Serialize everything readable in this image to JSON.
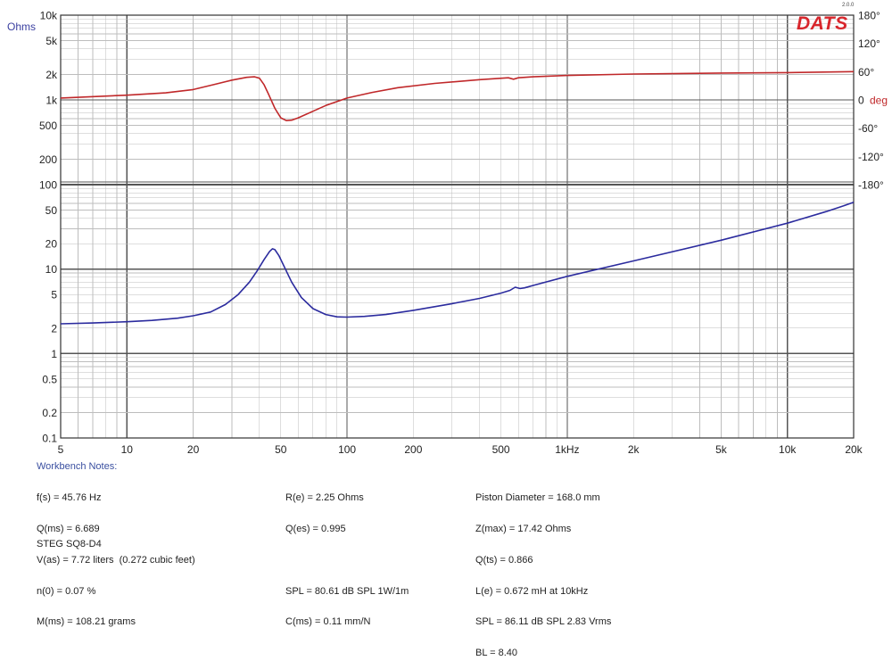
{
  "brand": {
    "logo": "DATS",
    "version": "2.0.0"
  },
  "colors": {
    "impedance": "#2b2b9e",
    "phase": "#c0282a",
    "left_axis_label": "#3a3fa0",
    "right_axis_label": "#c0282a",
    "grid": "#bdbdbd",
    "grid_major": "#555555",
    "logo": "#d8262c"
  },
  "chart_data": {
    "type": "line",
    "x_scale": "log",
    "xlim": [
      5,
      20000
    ],
    "x_ticks": [
      {
        "value": 5,
        "label": "5"
      },
      {
        "value": 10,
        "label": "10"
      },
      {
        "value": 20,
        "label": "20"
      },
      {
        "value": 50,
        "label": "50"
      },
      {
        "value": 100,
        "label": "100"
      },
      {
        "value": 200,
        "label": "200"
      },
      {
        "value": 500,
        "label": "500"
      },
      {
        "value": 1000,
        "label": "1kHz"
      },
      {
        "value": 2000,
        "label": "2k"
      },
      {
        "value": 5000,
        "label": "5k"
      },
      {
        "value": 10000,
        "label": "10k"
      },
      {
        "value": 20000,
        "label": "20k"
      }
    ],
    "left_axis": {
      "unit_label": "Ohms",
      "scale": "log",
      "lower_panel": {
        "range": [
          0.1,
          100
        ]
      },
      "upper_panel": {
        "range": [
          100,
          10000
        ]
      },
      "ticks": [
        {
          "value": 10000,
          "label": "10k",
          "panel": "upper"
        },
        {
          "value": 5000,
          "label": "5k",
          "panel": "upper"
        },
        {
          "value": 2000,
          "label": "2k",
          "panel": "upper"
        },
        {
          "value": 1000,
          "label": "1k",
          "panel": "upper"
        },
        {
          "value": 500,
          "label": "500",
          "panel": "upper"
        },
        {
          "value": 200,
          "label": "200",
          "panel": "upper"
        },
        {
          "value": 100,
          "label": "100",
          "panel": "lower"
        },
        {
          "value": 50,
          "label": "50",
          "panel": "lower"
        },
        {
          "value": 20,
          "label": "20",
          "panel": "lower"
        },
        {
          "value": 10,
          "label": "10",
          "panel": "lower"
        },
        {
          "value": 5,
          "label": "5",
          "panel": "lower"
        },
        {
          "value": 2,
          "label": "2",
          "panel": "lower"
        },
        {
          "value": 1,
          "label": "1",
          "panel": "lower"
        },
        {
          "value": 0.5,
          "label": "0.5",
          "panel": "lower"
        },
        {
          "value": 0.2,
          "label": "0.2",
          "panel": "lower"
        },
        {
          "value": 0.1,
          "label": "0.1",
          "panel": "lower"
        }
      ]
    },
    "right_axis": {
      "unit_label": "deg",
      "range": [
        -180,
        180
      ],
      "ticks": [
        {
          "value": 180,
          "label": "180°"
        },
        {
          "value": 120,
          "label": "120°"
        },
        {
          "value": 60,
          "label": "60°"
        },
        {
          "value": 0,
          "label": "0"
        },
        {
          "value": -60,
          "label": "-60°"
        },
        {
          "value": -120,
          "label": "-120°"
        },
        {
          "value": -180,
          "label": "-180°"
        }
      ]
    },
    "series": [
      {
        "axis": "left-lower",
        "color": "#2b2b9e",
        "points": [
          [
            5,
            2.25
          ],
          [
            7,
            2.3
          ],
          [
            10,
            2.38
          ],
          [
            13,
            2.47
          ],
          [
            17,
            2.62
          ],
          [
            20,
            2.8
          ],
          [
            24,
            3.1
          ],
          [
            28,
            3.8
          ],
          [
            32,
            5.0
          ],
          [
            36,
            7.0
          ],
          [
            39,
            9.5
          ],
          [
            42,
            13.0
          ],
          [
            44.5,
            16.2
          ],
          [
            45.8,
            17.4
          ],
          [
            47,
            17.0
          ],
          [
            49,
            14.5
          ],
          [
            52,
            10.5
          ],
          [
            56,
            7.0
          ],
          [
            62,
            4.6
          ],
          [
            70,
            3.4
          ],
          [
            80,
            2.9
          ],
          [
            90,
            2.72
          ],
          [
            100,
            2.7
          ],
          [
            120,
            2.75
          ],
          [
            150,
            2.9
          ],
          [
            200,
            3.25
          ],
          [
            300,
            3.9
          ],
          [
            400,
            4.5
          ],
          [
            500,
            5.2
          ],
          [
            550,
            5.6
          ],
          [
            580,
            6.1
          ],
          [
            610,
            5.9
          ],
          [
            640,
            6.0
          ],
          [
            700,
            6.4
          ],
          [
            1000,
            8.2
          ],
          [
            2000,
            12.5
          ],
          [
            5000,
            22
          ],
          [
            10000,
            35
          ],
          [
            15000,
            48
          ],
          [
            18000,
            56
          ],
          [
            20000,
            62
          ]
        ]
      },
      {
        "axis": "right",
        "color": "#c0282a",
        "points": [
          [
            5,
            4
          ],
          [
            10,
            10
          ],
          [
            15,
            15
          ],
          [
            20,
            22
          ],
          [
            25,
            33
          ],
          [
            30,
            42
          ],
          [
            35,
            48
          ],
          [
            38,
            49
          ],
          [
            40,
            46
          ],
          [
            42,
            32
          ],
          [
            44,
            12
          ],
          [
            47,
            -18
          ],
          [
            50,
            -38
          ],
          [
            53,
            -44
          ],
          [
            56,
            -43
          ],
          [
            60,
            -38
          ],
          [
            70,
            -24
          ],
          [
            80,
            -12
          ],
          [
            100,
            4
          ],
          [
            130,
            16
          ],
          [
            170,
            26
          ],
          [
            250,
            35
          ],
          [
            400,
            43
          ],
          [
            540,
            47
          ],
          [
            570,
            44
          ],
          [
            600,
            47
          ],
          [
            700,
            49
          ],
          [
            1000,
            52
          ],
          [
            2000,
            55
          ],
          [
            5000,
            57
          ],
          [
            10000,
            58
          ],
          [
            20000,
            60
          ]
        ]
      }
    ]
  },
  "notes": {
    "title": "Workbench Notes:",
    "col1": [
      "f(s) = 45.76 Hz",
      "Q(ms) = 6.689",
      "V(as) = 7.72 liters  (0.272 cubic feet)",
      "n(0) = 0.07 %",
      "M(ms) = 108.21 grams"
    ],
    "col2": [
      "R(e) = 2.25 Ohms",
      "Q(es) = 0.995",
      "",
      "SPL = 80.61 dB SPL 1W/1m",
      "C(ms) = 0.11 mm/N"
    ],
    "col3": [
      "Piston Diameter = 168.0 mm",
      "Z(max) = 17.42 Ohms",
      "Q(ts) = 0.866",
      "L(e) = 0.672 mH at 10kHz",
      "SPL = 86.11 dB SPL 2.83 Vrms",
      "BL = 8.40"
    ],
    "model": "STEG SQ8-D4"
  }
}
